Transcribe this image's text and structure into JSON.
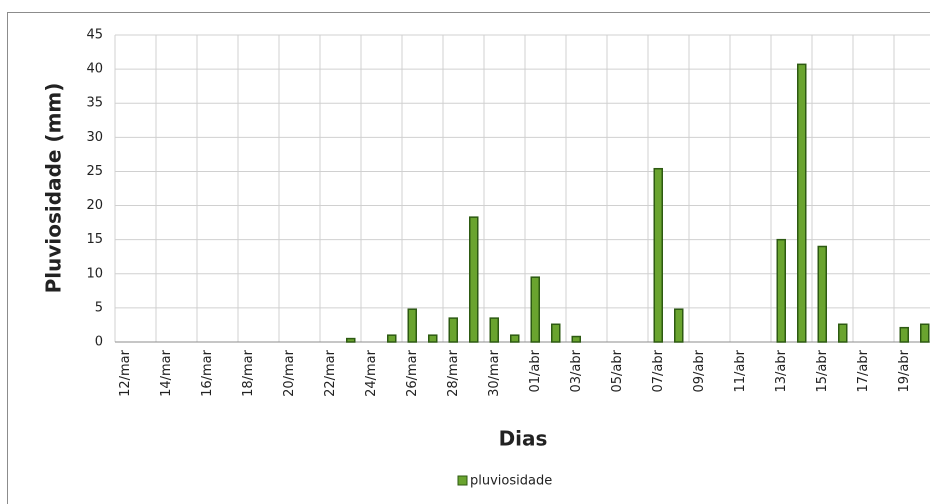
{
  "chart_data": {
    "type": "bar",
    "x_label": "Dias",
    "y_label": "Pluviosidade (mm)",
    "categories": [
      "12/mar",
      null,
      "14/mar",
      null,
      "16/mar",
      null,
      "18/mar",
      null,
      "20/mar",
      null,
      "22/mar",
      null,
      "24/mar",
      null,
      "26/mar",
      null,
      "28/mar",
      null,
      "30/mar",
      null,
      "01/abr",
      null,
      "03/abr",
      null,
      "05/abr",
      null,
      "07/abr",
      null,
      "09/abr",
      null,
      "11/abr",
      null,
      "13/abr",
      null,
      "15/abr",
      null,
      "17/abr",
      null,
      "19/abr",
      null
    ],
    "series": [
      {
        "name": "pluviosidade",
        "color": "#6aa42f",
        "values": [
          0,
          0,
          0,
          0,
          0,
          0,
          0,
          0,
          0,
          0,
          0,
          0.5,
          0,
          1,
          4.8,
          1,
          3.5,
          18.3,
          3.5,
          1,
          9.5,
          2.6,
          0.8,
          0,
          0,
          0,
          25.4,
          4.8,
          0,
          0,
          0,
          0,
          15,
          40.7,
          14,
          2.6,
          0,
          0,
          2.1,
          2.6
        ]
      }
    ],
    "ylim": [
      0,
      45
    ],
    "yticks": [
      0,
      5,
      10,
      15,
      20,
      25,
      30,
      35,
      40,
      45
    ],
    "grid": true,
    "legend": "bottom"
  }
}
